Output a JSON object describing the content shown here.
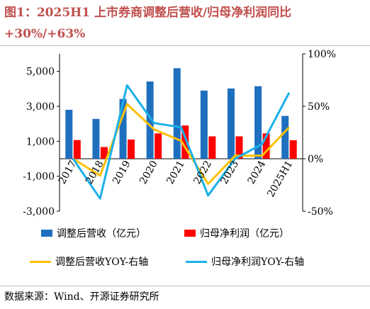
{
  "title_line1": "图1：2025H1 上市券商调整后营收/归母净利润同比",
  "title_line2": "+30%/+63%",
  "source": "数据来源：Wind、开源证券研究所",
  "colors": {
    "title": "#c0504d",
    "bar_revenue": "#1f6fbf",
    "bar_profit": "#ff0000",
    "line_revenue_yoy": "#ffc000",
    "line_profit_yoy": "#1ab0e8"
  },
  "chart_data": {
    "type": "bar",
    "categories": [
      "2017",
      "2018",
      "2019",
      "2020",
      "2021",
      "2022",
      "2023",
      "2024",
      "2025H1"
    ],
    "left_axis": {
      "ylim": [
        -3000,
        6000
      ],
      "ticks": [
        -3000,
        -1000,
        1000,
        3000,
        5000
      ],
      "tick_labels": [
        "-3,000",
        "-1,000",
        "1,000",
        "3,000",
        "5,000"
      ]
    },
    "right_axis": {
      "ylim": [
        -50,
        100
      ],
      "ticks": [
        -50,
        0,
        50,
        100
      ],
      "tick_labels": [
        "-50%",
        "0%",
        "50%",
        "100%"
      ]
    },
    "series": [
      {
        "name": "调整后营收（亿元）",
        "kind": "bar",
        "axis": "left",
        "values": [
          2800,
          2280,
          3420,
          4420,
          5180,
          3900,
          4020,
          4150,
          2450
        ]
      },
      {
        "name": "归母净利润（亿元）",
        "kind": "bar",
        "axis": "left",
        "values": [
          1070,
          670,
          1100,
          1450,
          1900,
          1280,
          1280,
          1450,
          1060
        ]
      },
      {
        "name": "调整后营收YOY-右轴",
        "kind": "line",
        "axis": "right",
        "values": [
          0,
          -16,
          52,
          28,
          17,
          -24,
          3,
          3,
          30
        ]
      },
      {
        "name": "归母净利润YOY-右轴",
        "kind": "line",
        "axis": "right",
        "values": [
          0,
          -38,
          70,
          34,
          30,
          -35,
          0,
          14,
          63
        ]
      }
    ],
    "grid": false,
    "legend_position": "bottom"
  }
}
